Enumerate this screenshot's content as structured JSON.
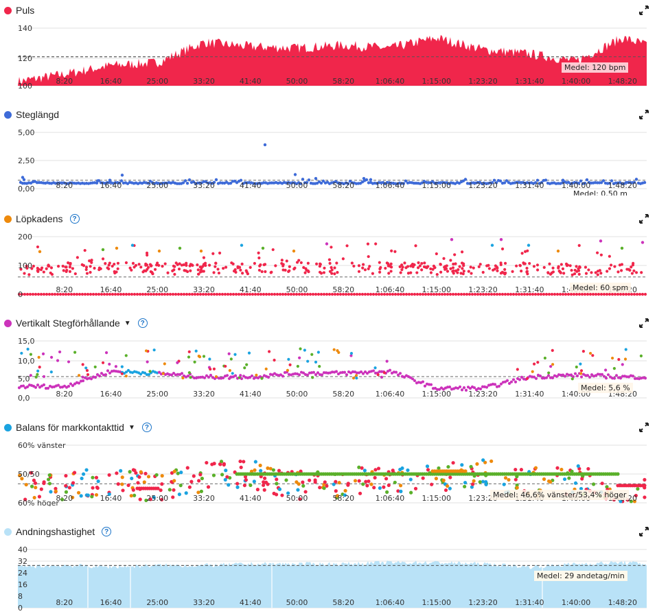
{
  "x_ticks": [
    "8:20",
    "16:40",
    "25:00",
    "33:20",
    "41:40",
    "50:00",
    "58:20",
    "1:06:40",
    "1:15:00",
    "1:23:20",
    "1:31:40",
    "1:40:00",
    "1:48:20"
  ],
  "colors": {
    "red": "#f0264b",
    "blue": "#3e6bd8",
    "orange": "#ee8a0c",
    "green": "#5ab02a",
    "cyan": "#1aa3e0",
    "magenta": "#cc33bb",
    "lightblue": "#b9e2f7",
    "help": "#1a73c8"
  },
  "panels": {
    "puls": {
      "title": "Puls",
      "avg": "Medel: 120 bpm",
      "yticks": [
        "140",
        "120",
        "100"
      ]
    },
    "steg": {
      "title": "Steglängd",
      "avg": "Medel: 0,50 m",
      "yticks": [
        "5,00",
        "2,50",
        "0,00"
      ]
    },
    "kad": {
      "title": "Löpkadens",
      "avg": "Medel: 60 spm",
      "yticks": [
        "200",
        "100",
        "0"
      ]
    },
    "vert": {
      "title": "Vertikalt Stegförhållande",
      "avg": "Medel: 5,6 %",
      "yticks": [
        "15,0",
        "10,0",
        "5,0",
        "0,0"
      ]
    },
    "bal": {
      "title": "Balans för markkontakttid",
      "avg": "Medel: 46,6% vänster/53,4% höger",
      "yticks": [
        "60% vänster",
        "50/50",
        "60% höger"
      ]
    },
    "andn": {
      "title": "Andningshastighet",
      "avg": "Medel: 29 andetag/min",
      "yticks": [
        "40",
        "32",
        "24",
        "16",
        "8",
        "0"
      ]
    }
  },
  "chart_data": [
    {
      "type": "area",
      "title": "Puls",
      "x_unit": "elapsed time",
      "xlim": [
        "0:00",
        "1:53:00"
      ],
      "ylim": [
        100,
        145
      ],
      "average": 120,
      "x": [
        "0:00",
        "8:20",
        "16:40",
        "25:00",
        "33:20",
        "41:40",
        "50:00",
        "58:20",
        "1:06:40",
        "1:15:00",
        "1:23:20",
        "1:31:40",
        "1:40:00",
        "1:48:20",
        "1:53:00"
      ],
      "values": [
        103,
        108,
        114,
        116,
        130,
        127,
        126,
        128,
        126,
        133,
        125,
        122,
        117,
        133,
        128
      ]
    },
    {
      "type": "scatter",
      "title": "Steglängd",
      "unit": "m",
      "ylim": [
        0,
        6
      ],
      "average": 0.5,
      "x": [
        "1:00",
        "8:20",
        "16:40",
        "25:00",
        "33:20",
        "41:40",
        "47:00",
        "50:00",
        "58:20",
        "1:06:40",
        "1:15:00",
        "1:23:20",
        "1:31:40",
        "1:40:00",
        "1:48:20"
      ],
      "values": [
        0.8,
        0.5,
        0.6,
        0.5,
        0.5,
        0.5,
        3.9,
        0.5,
        0.6,
        0.6,
        0.5,
        0.5,
        0.5,
        0.5,
        0.5
      ]
    },
    {
      "type": "scatter",
      "title": "Löpkadens",
      "unit": "spm",
      "ylim": [
        0,
        210
      ],
      "average": 60,
      "x": [
        "1:00",
        "8:20",
        "16:40",
        "25:00",
        "33:20",
        "41:40",
        "50:00",
        "58:20",
        "1:06:40",
        "1:15:00",
        "1:23:20",
        "1:31:40",
        "1:40:00",
        "1:48:20"
      ],
      "values": [
        85,
        90,
        92,
        90,
        88,
        90,
        92,
        90,
        93,
        88,
        90,
        90,
        86,
        88
      ]
    },
    {
      "type": "scatter",
      "title": "Vertikalt Stegförhållande",
      "unit": "%",
      "ylim": [
        0,
        16
      ],
      "average": 5.6,
      "x": [
        "1:00",
        "8:20",
        "16:40",
        "25:00",
        "33:20",
        "41:40",
        "50:00",
        "58:20",
        "1:06:40",
        "1:15:00",
        "1:23:20",
        "1:31:40",
        "1:40:00",
        "1:48:20"
      ],
      "values": [
        3.0,
        3.0,
        7.0,
        6.5,
        5.5,
        5.5,
        6.5,
        6.5,
        7.0,
        2.5,
        2.5,
        5.5,
        6.0,
        5.5
      ]
    },
    {
      "type": "scatter",
      "title": "Balans för markkontakttid",
      "unit": "% vänster",
      "ylim": [
        40,
        60
      ],
      "average": 46.6,
      "x": [
        "1:00",
        "8:20",
        "16:40",
        "25:00",
        "33:20",
        "41:40",
        "50:00",
        "58:20",
        "1:06:40",
        "1:15:00",
        "1:23:20",
        "1:31:40",
        "1:40:00",
        "1:48:20"
      ],
      "values": [
        46,
        45,
        48,
        45,
        49,
        50,
        46,
        47,
        48,
        49,
        50,
        47,
        48,
        44
      ]
    },
    {
      "type": "area",
      "title": "Andningshastighet",
      "unit": "andetag/min",
      "ylim": [
        0,
        40
      ],
      "average": 29,
      "x": [
        "0:00",
        "8:20",
        "16:40",
        "25:00",
        "33:20",
        "41:40",
        "50:00",
        "58:20",
        "1:06:40",
        "1:15:00",
        "1:23:20",
        "1:31:40",
        "1:40:00",
        "1:48:20",
        "1:53:00"
      ],
      "values": [
        28,
        29,
        28,
        29,
        29,
        30,
        30,
        30,
        31,
        31,
        30,
        28,
        30,
        31,
        30
      ]
    }
  ]
}
